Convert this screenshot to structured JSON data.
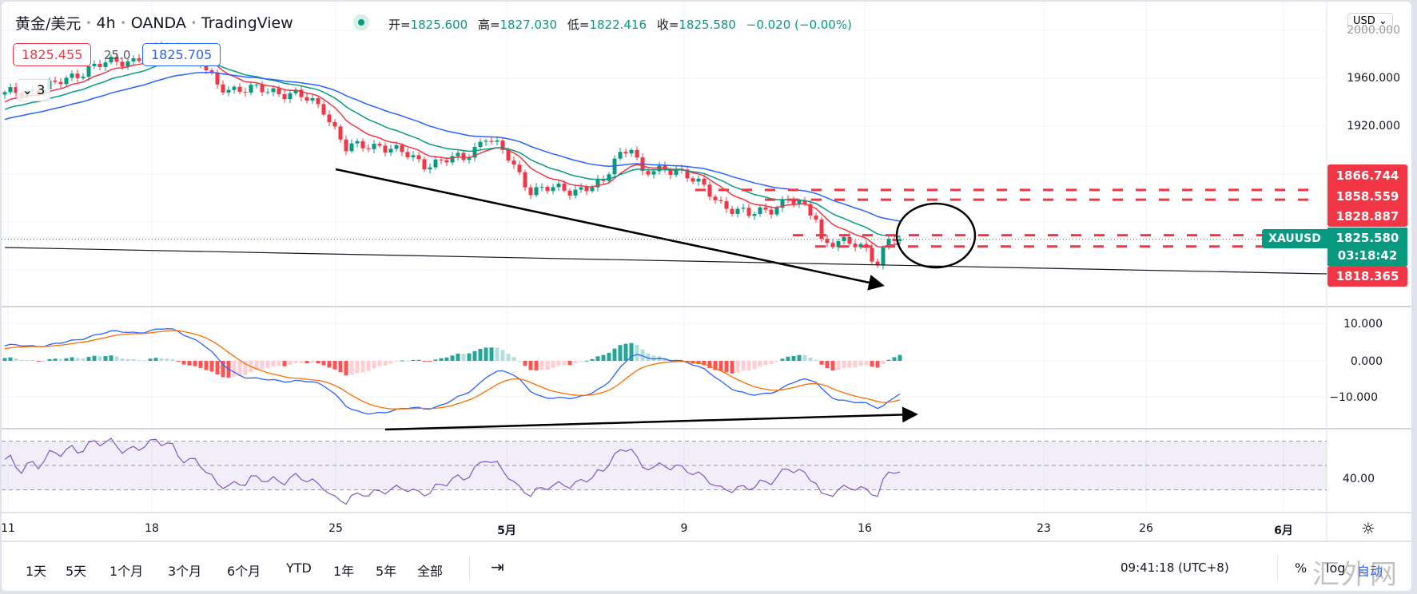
{
  "header": {
    "symbol": "黄金/美元",
    "interval": "4h",
    "broker": "OANDA",
    "source": "TradingView",
    "open_label": "开=",
    "open": "1825.600",
    "high_label": "高=",
    "high": "1827.030",
    "low_label": "低=",
    "low": "1822.416",
    "close_label": "收=",
    "close": "1825.580",
    "change": "−0.020 (−0.00%)"
  },
  "overlay": {
    "sell_price": "1825.455",
    "spread": "25.0",
    "buy_price": "1825.705",
    "collapse_count": "3"
  },
  "currency_button": "USD",
  "price_axis": [
    "2000.000",
    "1960.000",
    "1920.000"
  ],
  "price_labels": {
    "level1": "1866.744",
    "level2": "1858.559",
    "level3": "1828.887",
    "current": "1825.580",
    "countdown": "03:18:42",
    "level4": "1818.365",
    "symbol_tag": "XAUUSD"
  },
  "macd_axis": [
    "10.000",
    "0.000",
    "−10.000"
  ],
  "rsi_axis": [
    "40.00"
  ],
  "time_axis": [
    "11",
    "18",
    "25",
    "5月",
    "9",
    "16",
    "23",
    "26",
    "6月"
  ],
  "toolbar": {
    "ranges": [
      "1天",
      "5天",
      "1个月",
      "3个月",
      "6个月",
      "YTD",
      "1年",
      "5年",
      "全部"
    ],
    "clock": "09:41:18 (UTC+8)",
    "percent": "%",
    "log": "log",
    "auto": "自动"
  },
  "watermark": "汇外网",
  "colors": {
    "up": "#089981",
    "down": "#f23645",
    "ma_fast": "#f23645",
    "ma_mid": "#089981",
    "ma_slow": "#2962ff",
    "macd": "#2962ff",
    "signal": "#ff6d00",
    "rsi": "#7e57c2"
  },
  "chart_data": {
    "type": "candlestick",
    "close_keypoints_bar_price": [
      [
        0,
        1946
      ],
      [
        9,
        1954
      ],
      [
        15,
        1969
      ],
      [
        23,
        1976
      ],
      [
        29,
        1987
      ],
      [
        35,
        1972
      ],
      [
        38,
        1954
      ],
      [
        43,
        1950
      ],
      [
        48,
        1950
      ],
      [
        52,
        1946
      ],
      [
        57,
        1935
      ],
      [
        61,
        1901
      ],
      [
        67,
        1905
      ],
      [
        75,
        1889
      ],
      [
        82,
        1893
      ],
      [
        86,
        1912
      ],
      [
        90,
        1893
      ],
      [
        94,
        1867
      ],
      [
        101,
        1867
      ],
      [
        107,
        1871
      ],
      [
        109,
        1893
      ],
      [
        112,
        1905
      ],
      [
        114,
        1879
      ],
      [
        120,
        1886
      ],
      [
        124,
        1871
      ],
      [
        128,
        1856
      ],
      [
        133,
        1845
      ],
      [
        137,
        1852
      ],
      [
        140,
        1859
      ],
      [
        145,
        1845
      ],
      [
        146,
        1825
      ],
      [
        150,
        1822
      ],
      [
        154,
        1818
      ],
      [
        156,
        1807
      ],
      [
        158,
        1825
      ],
      [
        160,
        1825.58
      ]
    ],
    "horizontal_levels": [
      1866.744,
      1858.559,
      1828.887,
      1822.4
    ],
    "ylim": [
      1780,
      2000
    ]
  }
}
